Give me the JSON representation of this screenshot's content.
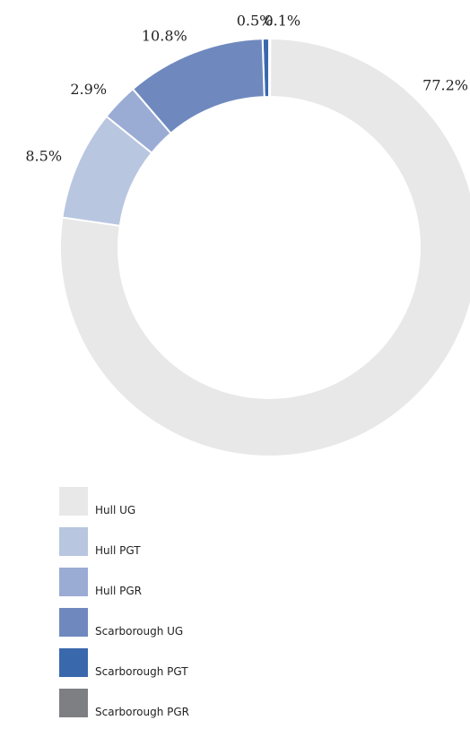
{
  "chart_data": {
    "type": "pie",
    "title": "",
    "categories": [
      "Hull UG",
      "Hull PGT",
      "Hull PGR",
      "Scarborough UG",
      "Scarborough PGT",
      "Scarborough PGR"
    ],
    "values": [
      77.2,
      8.5,
      2.9,
      10.8,
      0.5,
      0.1
    ],
    "value_labels": [
      "77.2%",
      "8.5%",
      "2.9%",
      "10.8%",
      "0.5%",
      "0.1%"
    ],
    "colors": [
      "#e8e8e8",
      "#b8c6e0",
      "#9aabd4",
      "#6f89bf",
      "#3a68ad",
      "#7d7f82"
    ],
    "donut": true,
    "legend_position": "bottom-left"
  }
}
